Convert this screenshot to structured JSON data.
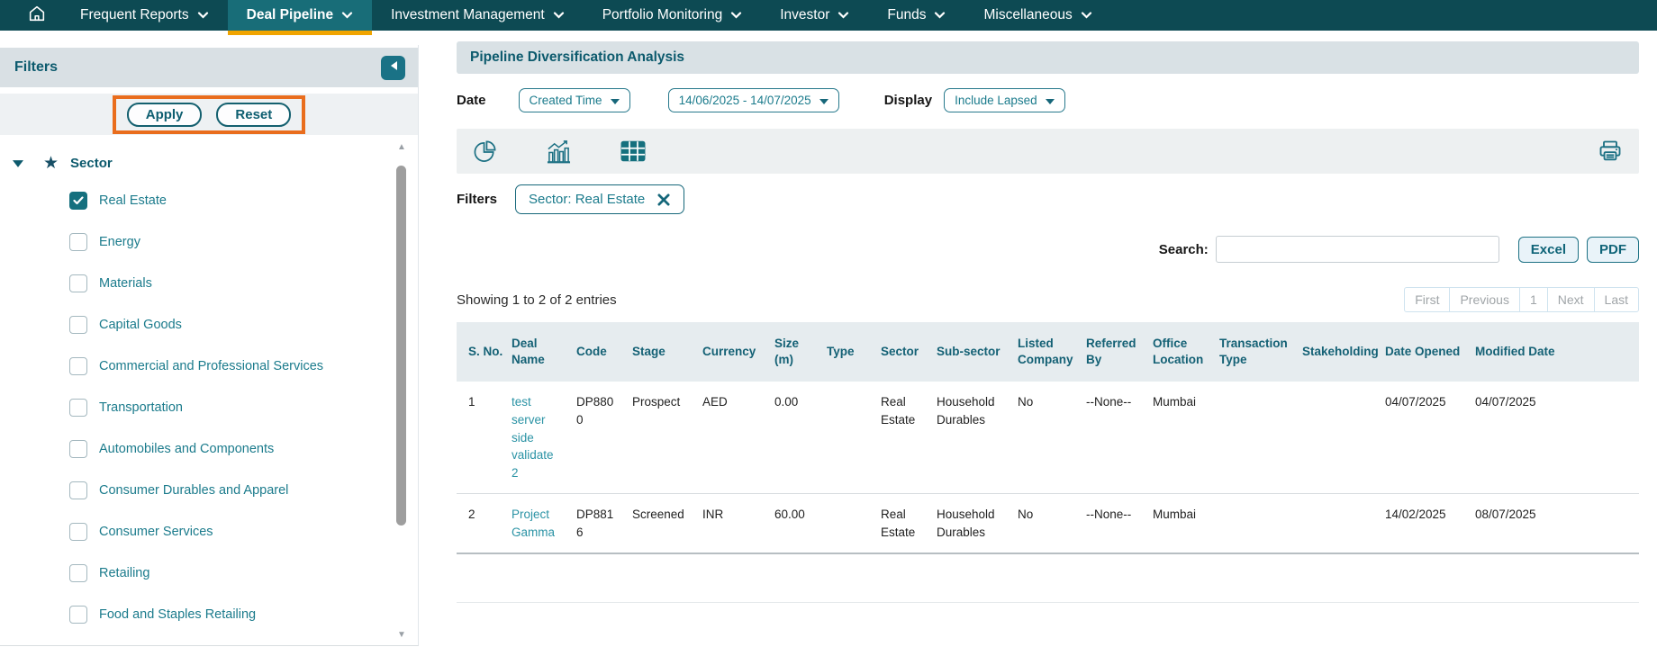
{
  "nav": {
    "home_icon": "home",
    "items": [
      {
        "label": "Frequent Reports",
        "active": false
      },
      {
        "label": "Deal Pipeline",
        "active": true
      },
      {
        "label": "Investment Management",
        "active": false
      },
      {
        "label": "Portfolio Monitoring",
        "active": false
      },
      {
        "label": "Investor",
        "active": false
      },
      {
        "label": "Funds",
        "active": false
      },
      {
        "label": "Miscellaneous",
        "active": false
      }
    ]
  },
  "sidebar": {
    "title": "Filters",
    "collapse_icon": "collapse-left",
    "apply_label": "Apply",
    "reset_label": "Reset",
    "sector_group": {
      "label": "Sector",
      "starred": true,
      "expanded": true
    },
    "sector_items": [
      {
        "label": "Real Estate",
        "checked": true
      },
      {
        "label": "Energy",
        "checked": false
      },
      {
        "label": "Materials",
        "checked": false
      },
      {
        "label": "Capital Goods",
        "checked": false
      },
      {
        "label": "Commercial and Professional Services",
        "checked": false
      },
      {
        "label": "Transportation",
        "checked": false
      },
      {
        "label": "Automobiles and Components",
        "checked": false
      },
      {
        "label": "Consumer Durables and Apparel",
        "checked": false
      },
      {
        "label": "Consumer Services",
        "checked": false
      },
      {
        "label": "Retailing",
        "checked": false
      },
      {
        "label": "Food and Staples Retailing",
        "checked": false
      }
    ]
  },
  "main": {
    "title": "Pipeline Diversification Analysis",
    "controls": {
      "date_label": "Date",
      "date_type_value": "Created Time",
      "date_range_value": "14/06/2025 - 14/07/2025",
      "display_label": "Display",
      "display_value": "Include Lapsed"
    },
    "view_icons": [
      "pie-chart-icon",
      "bar-chart-icon",
      "table-grid-icon"
    ],
    "active_view": "table-grid-icon",
    "print_icon": "printer",
    "filters_bar": {
      "label": "Filters",
      "chip_label": "Sector: Real Estate",
      "chip_close_icon": "close"
    },
    "search": {
      "label": "Search:",
      "value": "",
      "placeholder": ""
    },
    "export_buttons": {
      "excel": "Excel",
      "pdf": "PDF"
    },
    "summary_text": "Showing 1 to 2 of 2 entries",
    "pagination": {
      "items": [
        "First",
        "Previous",
        "1",
        "Next",
        "Last"
      ],
      "current": "1"
    },
    "table": {
      "columns": [
        "S. No.",
        "Deal Name",
        "Code",
        "Stage",
        "Currency",
        "Size (m)",
        "Type",
        "Sector",
        "Sub-sector",
        "Listed Company",
        "Referred By",
        "Office Location",
        "Transaction Type",
        "Stakeholding",
        "Date Opened",
        "Modified Date"
      ],
      "rows": [
        [
          "1",
          "test server side validate 2",
          "DP8800",
          "Prospect",
          "AED",
          "0.00",
          "",
          "Real Estate",
          "Household Durables",
          "No",
          "--None--",
          "Mumbai",
          "",
          "",
          "04/07/2025",
          "04/07/2025"
        ],
        [
          "2",
          "Project Gamma",
          "DP8816",
          "Screened",
          "INR",
          "60.00",
          "",
          "Real Estate",
          "Household Durables",
          "No",
          "--None--",
          "Mumbai",
          "",
          "",
          "14/02/2025",
          "08/07/2025"
        ]
      ]
    }
  },
  "colors": {
    "nav_bg": "#0d4a53",
    "nav_active_bg": "#186d78",
    "active_tab_underline": "#f0a400",
    "accent_teal": "#15707e",
    "teal_text": "#1b7b8c",
    "heading_teal": "#0c5a6d",
    "link_teal": "#2b93a5",
    "highlight_orange": "#e96d1d"
  }
}
